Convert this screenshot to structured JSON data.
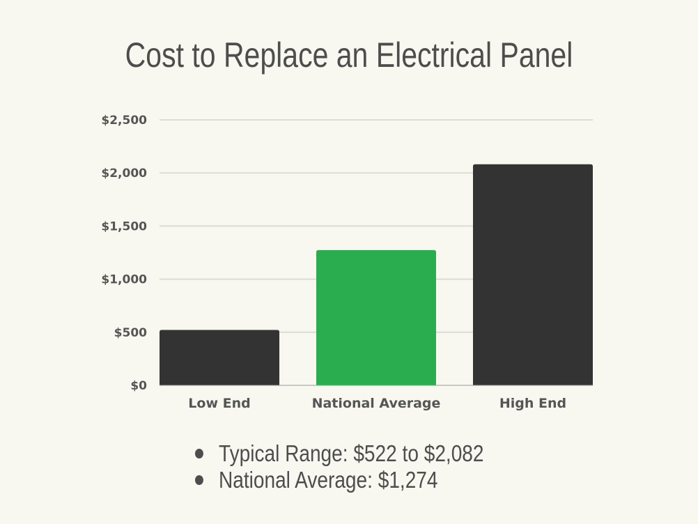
{
  "chart_data": {
    "type": "bar",
    "title": "Cost to Replace an Electrical Panel",
    "categories": [
      "Low End",
      "National Average",
      "High End"
    ],
    "values": [
      522,
      1274,
      2082
    ],
    "colors": [
      "#333333",
      "#2aad4f",
      "#333333"
    ],
    "ylim": [
      0,
      2500
    ],
    "yticks": [
      0,
      500,
      1000,
      1500,
      2000,
      2500
    ],
    "ytick_labels": [
      "$0",
      "$500",
      "$1,000",
      "$1,500",
      "$2,000",
      "$2,500"
    ],
    "grid": true,
    "xlabel": "",
    "ylabel": ""
  },
  "notes": [
    "Typical Range: $522 to $2,082",
    "National Average: $1,274"
  ]
}
